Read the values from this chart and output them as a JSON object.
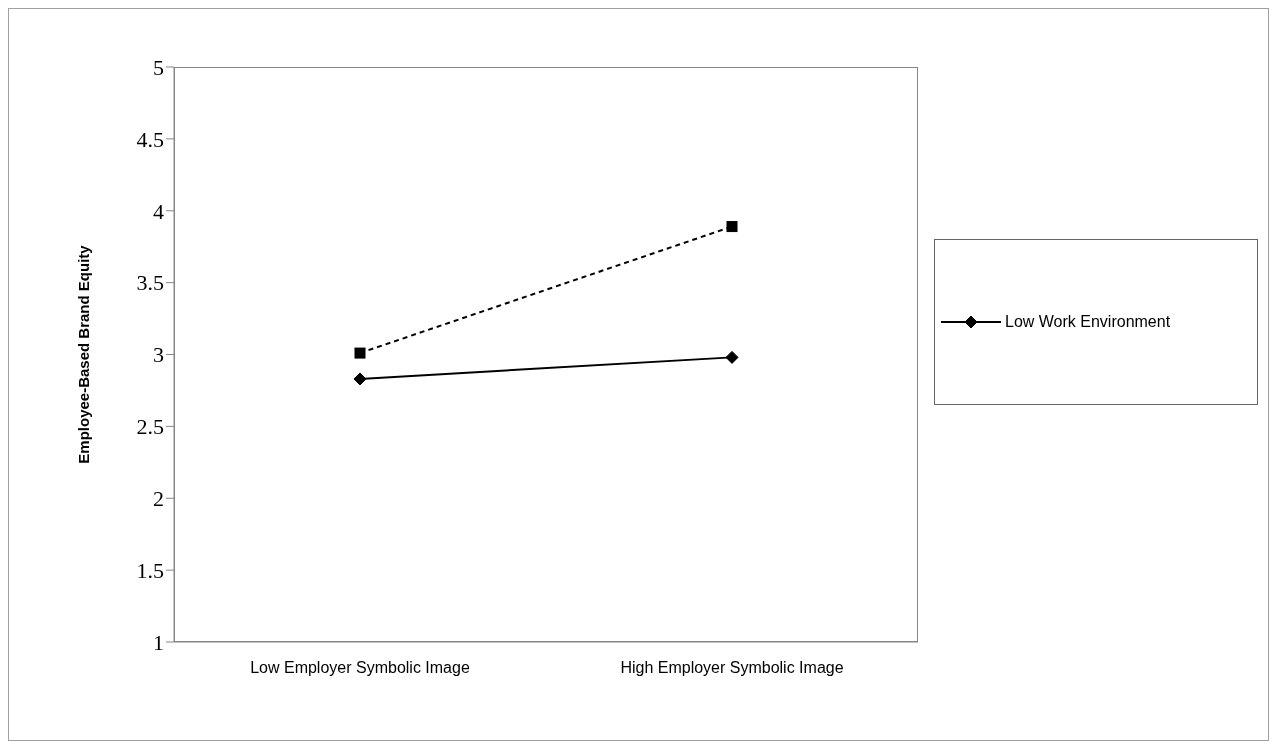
{
  "chart_data": {
    "type": "line",
    "ylabel": "Employee-Based Brand Equity",
    "categories": [
      "Low Employer Symbolic Image",
      "High Employer Symbolic Image"
    ],
    "series": [
      {
        "name": "Low Work Environment",
        "color": "#000000",
        "values": [
          2.83,
          2.98
        ],
        "marker": "diamond",
        "line_style": "solid"
      },
      {
        "color": "#000000",
        "values": [
          3.01,
          3.89
        ],
        "marker": "square",
        "line_style": "dashed"
      }
    ],
    "ylim": [
      1,
      5
    ],
    "yticks": [
      1,
      1.5,
      2,
      2.5,
      3,
      3.5,
      4,
      4.5,
      5
    ],
    "legend": "right"
  }
}
